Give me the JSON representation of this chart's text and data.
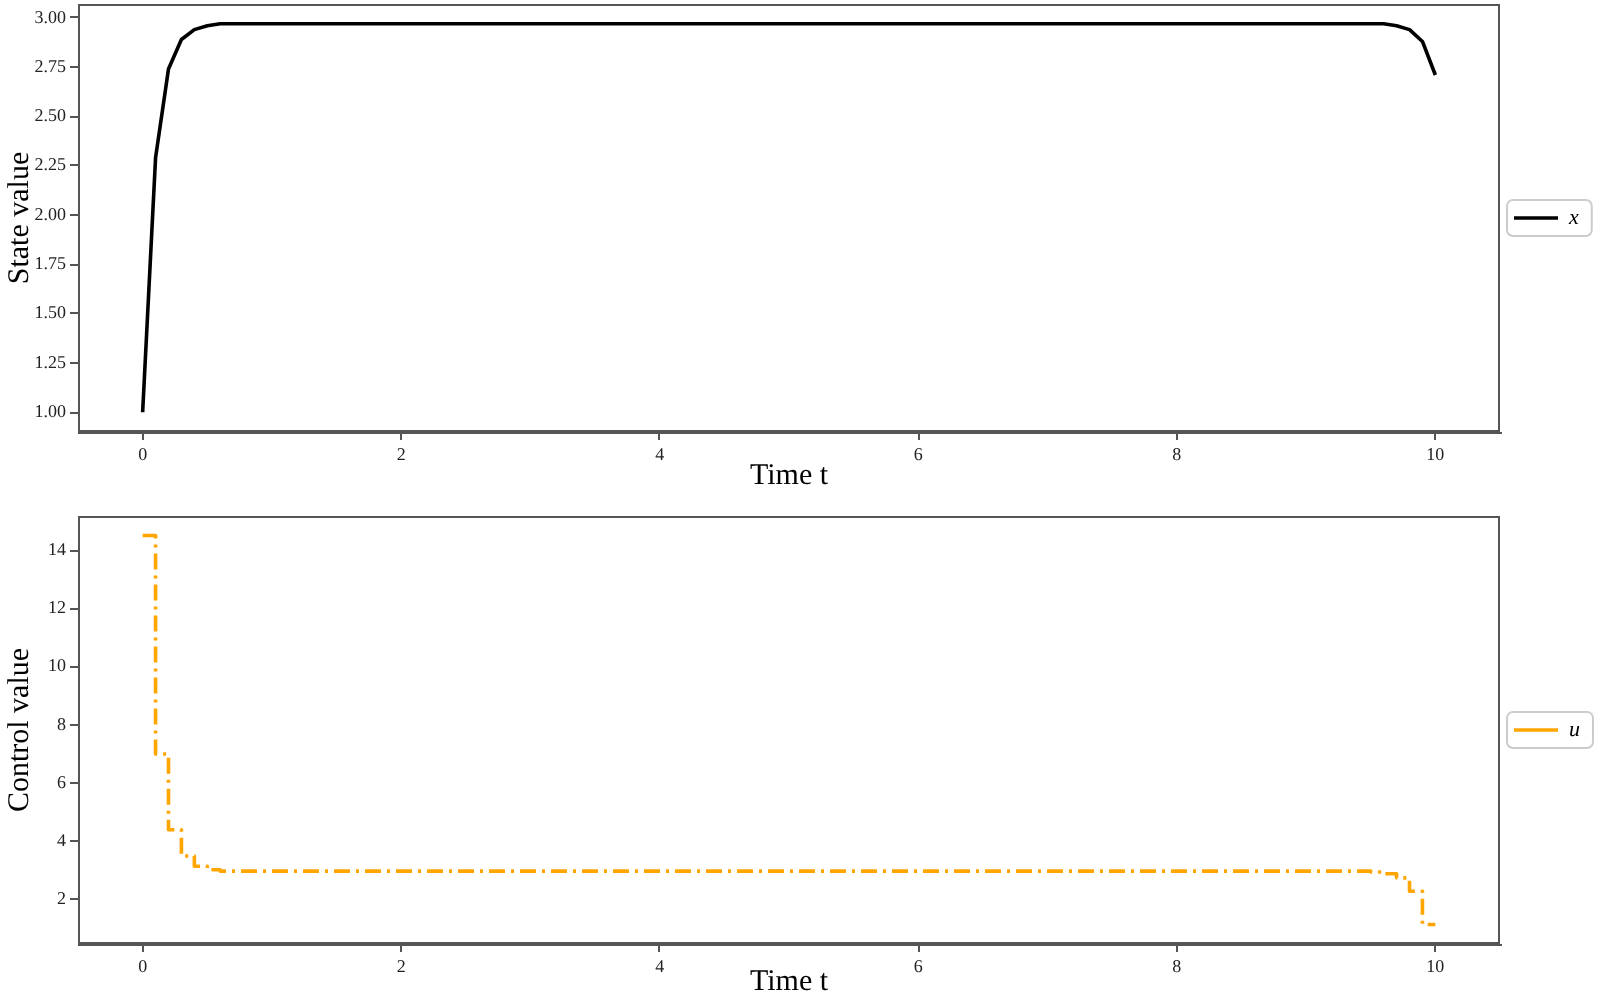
{
  "chart_data": [
    {
      "type": "line",
      "xlabel": "Time t",
      "ylabel": "State value",
      "x": [
        0,
        0.1,
        0.2,
        0.3,
        0.4,
        0.5,
        0.6,
        0.7,
        0.8,
        1,
        2,
        3,
        4,
        5,
        6,
        7,
        8,
        9,
        9.4,
        9.5,
        9.6,
        9.7,
        9.8,
        9.9,
        10
      ],
      "series": [
        {
          "name": "x",
          "color": "#000000",
          "values": [
            1.0,
            2.29,
            2.74,
            2.89,
            2.94,
            2.96,
            2.97,
            2.97,
            2.97,
            2.97,
            2.97,
            2.97,
            2.97,
            2.97,
            2.97,
            2.97,
            2.97,
            2.97,
            2.97,
            2.97,
            2.97,
            2.96,
            2.94,
            2.88,
            2.71
          ]
        }
      ],
      "xlim": [
        -0.5,
        10.5
      ],
      "ylim": [
        0.9,
        3.07
      ],
      "xticks": [
        0,
        2,
        4,
        6,
        8,
        10
      ],
      "yticks": [
        {
          "value": 1,
          "label": "1.00"
        },
        1.25,
        {
          "value": 1.5,
          "label": "1.50"
        },
        1.75,
        {
          "value": 2,
          "label": "2.00"
        },
        2.25,
        {
          "value": 2.5,
          "label": "2.50"
        },
        2.75,
        {
          "value": 3,
          "label": "3.00"
        }
      ],
      "legend": "right"
    },
    {
      "type": "step",
      "xlabel": "Time t",
      "ylabel": "Control value",
      "x": [
        0,
        0.1,
        0.2,
        0.3,
        0.4,
        0.5,
        0.6,
        1,
        2,
        3,
        4,
        5,
        6,
        7,
        8,
        9,
        9.4,
        9.5,
        9.6,
        9.7,
        9.8,
        9.9,
        10
      ],
      "series": [
        {
          "name": "u",
          "color": "#ffa500",
          "values": [
            14.5,
            7.0,
            4.4,
            3.5,
            3.15,
            3.03,
            2.98,
            2.98,
            2.98,
            2.98,
            2.98,
            2.98,
            2.98,
            2.98,
            2.98,
            2.98,
            2.98,
            2.95,
            2.89,
            2.75,
            2.29,
            1.15,
            1.15
          ]
        }
      ],
      "xlim": [
        -0.5,
        10.5
      ],
      "ylim": [
        0.48,
        15.17
      ],
      "xticks": [
        0,
        2,
        4,
        6,
        8,
        10
      ],
      "yticks": [
        2,
        4,
        6,
        8,
        10,
        12,
        14
      ],
      "legend": "right",
      "line_style": "dashdot"
    }
  ]
}
